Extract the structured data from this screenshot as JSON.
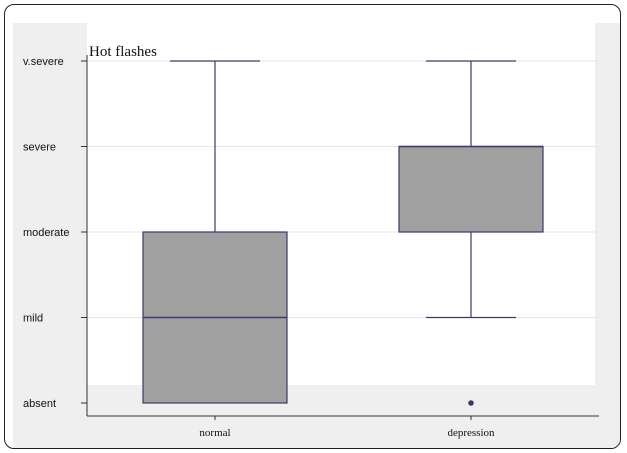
{
  "chart_data": {
    "type": "box",
    "title": "Hot flashes",
    "xlabel": "",
    "ylabel": "",
    "y_categories": [
      "absent",
      "mild",
      "moderate",
      "severe",
      "v.severe"
    ],
    "ylim": [
      0,
      4
    ],
    "grid": true,
    "categories": [
      "normal",
      "depression"
    ],
    "boxes": [
      {
        "name": "normal",
        "min": 0,
        "q1": 0,
        "median": 1,
        "q3": 2,
        "max": 4,
        "outliers": []
      },
      {
        "name": "depression",
        "min": 1,
        "q1": 2,
        "median": 3,
        "q3": 3,
        "max": 4,
        "outliers": [
          0
        ]
      }
    ],
    "box_fill": "#a0a0a0",
    "line_color": "#3a3a6e",
    "grid_color": "#e6e6ee",
    "panel_color": "#efefef"
  }
}
